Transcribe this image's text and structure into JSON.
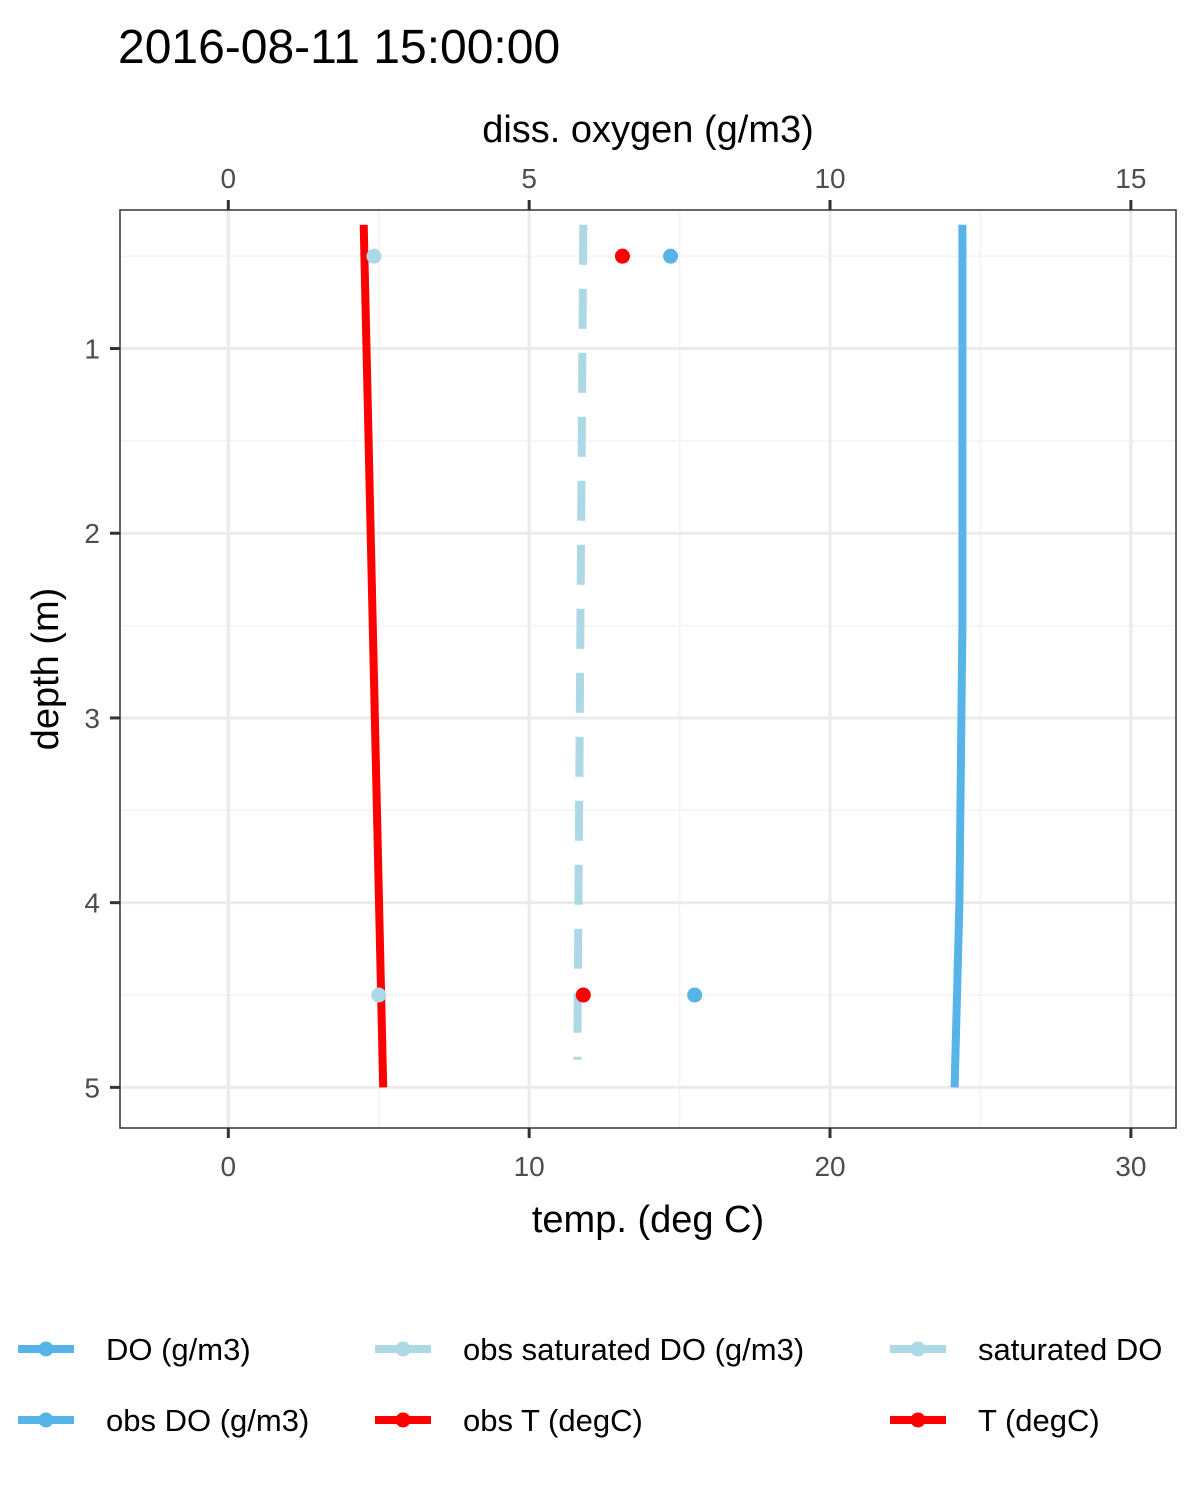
{
  "chart_data": {
    "type": "line",
    "title": "2016-08-11 15:00:00",
    "xlabel": "temp. (deg C)",
    "x2label": "diss. oxygen (g/m3)",
    "ylabel": "depth (m)",
    "xlim": [
      -3.6,
      31.5
    ],
    "x2lim": [
      -1.8,
      15.75
    ],
    "ylim": [
      0.25,
      5.22
    ],
    "y_reversed": true,
    "x_ticks": [
      "0",
      "10",
      "20",
      "30"
    ],
    "x2_ticks": [
      "0",
      "5",
      "10",
      "15"
    ],
    "y_ticks": [
      "1",
      "2",
      "3",
      "4",
      "5"
    ],
    "grid": true,
    "legend_position": "bottom",
    "series": [
      {
        "name": "T (degC)",
        "axis": "temp",
        "style": "solid",
        "color": "#ff0000",
        "points": [
          [
            4.5,
            0.33
          ],
          [
            5.15,
            5.0
          ]
        ]
      },
      {
        "name": "DO (g/m3)",
        "axis": "do",
        "style": "solid",
        "color": "#56b4e9",
        "points": [
          [
            12.2,
            0.33
          ],
          [
            12.2,
            2.5
          ],
          [
            12.15,
            4.0
          ],
          [
            12.07,
            5.0
          ]
        ]
      },
      {
        "name": "saturated DO",
        "axis": "do",
        "style": "dashed",
        "color": "#add8e6",
        "points": [
          [
            5.9,
            0.33
          ],
          [
            5.8,
            4.85
          ]
        ]
      },
      {
        "name": "obs T (degC)",
        "axis": "temp",
        "style": "points",
        "color": "#ff0000",
        "points": [
          [
            13.1,
            0.5
          ],
          [
            11.8,
            4.5
          ]
        ]
      },
      {
        "name": "obs DO (g/m3)",
        "axis": "do",
        "style": "points",
        "color": "#56b4e9",
        "points": [
          [
            7.35,
            0.5
          ],
          [
            7.75,
            4.5
          ]
        ]
      },
      {
        "name": "obs saturated DO (g/m3)",
        "axis": "do",
        "style": "points",
        "color": "#add8e6",
        "points": [
          [
            2.42,
            0.5
          ],
          [
            2.5,
            4.5
          ]
        ]
      }
    ]
  },
  "legend": {
    "items": [
      {
        "label": "DO (g/m3)",
        "color": "#56b4e9"
      },
      {
        "label": "obs saturated DO (g/m3)",
        "color": "#add8e6"
      },
      {
        "label": "saturated DO",
        "color": "#add8e6"
      },
      {
        "label": "obs DO (g/m3)",
        "color": "#56b4e9"
      },
      {
        "label": "obs T (degC)",
        "color": "#ff0000"
      },
      {
        "label": "T (degC)",
        "color": "#ff0000"
      }
    ]
  }
}
